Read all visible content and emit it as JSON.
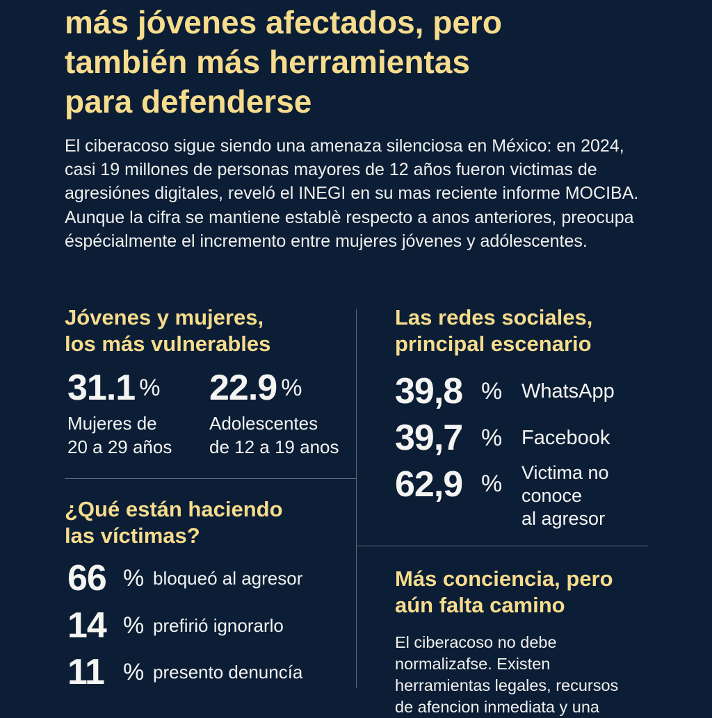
{
  "title": {
    "lines": [
      "más jóvenes afectados, pero",
      "también más herramientas",
      "para defenderse"
    ]
  },
  "intro": "El ciberacoso sigue siendo una amenaza silenciosa en México: en 2024, casi 19 millones de personas mayores de 12 años fueron victimas de agresiónes digitales, reveló el INEGI en su mas reciente informe MOCIBA. Aunque la cifra se mantiene establè respecto a anos anteriores, preocupa éspécialmente el incremento entre mujeres jóvenes y adólescentes.",
  "vulnerable": {
    "heading": [
      "Jóvenes y mujeres,",
      "los más vulnerables"
    ],
    "stats": [
      {
        "value": "31.1",
        "unit": "%",
        "label": [
          "Mujeres de",
          "20 a 29 años"
        ]
      },
      {
        "value": "22.9",
        "unit": "%",
        "label": [
          "Adolescentes",
          "de 12 a 19 anos"
        ]
      }
    ]
  },
  "actions": {
    "heading": [
      "¿Qué están haciendo",
      "las víctimas?"
    ],
    "stats": [
      {
        "value": "66",
        "unit": "%",
        "label": "bloqueó al agresor"
      },
      {
        "value": "14",
        "unit": "%",
        "label": "prefirió ignorarlo"
      },
      {
        "value": "11",
        "unit": "%",
        "label": "presento denuncía"
      }
    ]
  },
  "social": {
    "heading": [
      "Las redes sociales,",
      "principal escenario"
    ],
    "stats": [
      {
        "value": "39,8",
        "unit": "%",
        "label": [
          "WhatsApp"
        ]
      },
      {
        "value": "39,7",
        "unit": "%",
        "label": [
          "Facebook"
        ]
      },
      {
        "value": "62,9",
        "unit": "%",
        "label": [
          "Victima no",
          "conoce",
          "al agresor"
        ]
      }
    ]
  },
  "awareness": {
    "heading": [
      "Más conciencia, pero",
      "aún falta camino"
    ],
    "text": [
      "El ciberacoso no debe",
      "normalizafse. Existen",
      "herramientas legales, recursos",
      "de afencion inmediata y una"
    ]
  },
  "colors": {
    "background": "#0c1e36",
    "accent": "#f6dc8c",
    "text": "#f4f4f2"
  }
}
